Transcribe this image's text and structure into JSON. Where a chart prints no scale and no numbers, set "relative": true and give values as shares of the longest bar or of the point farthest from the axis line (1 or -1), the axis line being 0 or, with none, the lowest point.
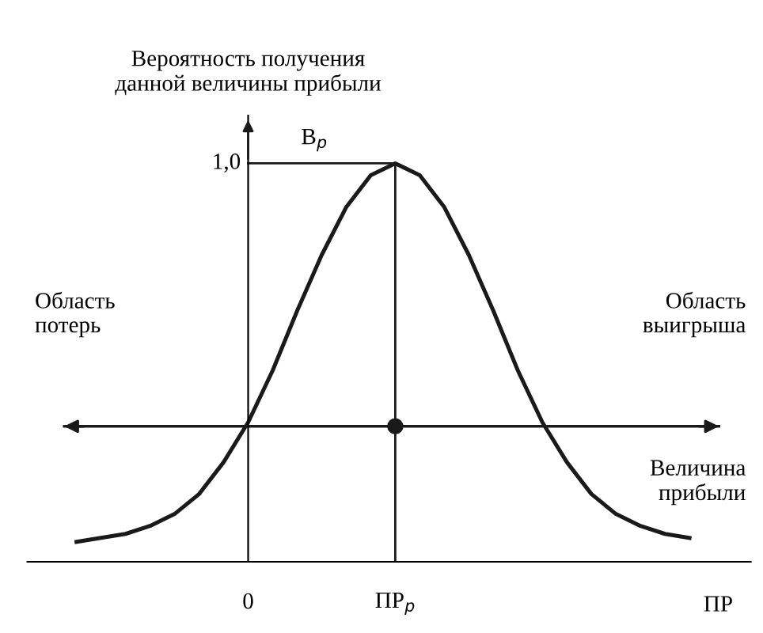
{
  "chart_data": {
    "type": "line",
    "relative": true,
    "ylabel": "Вероятность получения\nданной величины прибыли",
    "xlabel": "ПР",
    "categories": [
      null,
      null,
      null,
      null,
      null,
      null,
      null,
      "0",
      null,
      null,
      null,
      null,
      null,
      "ПР$_{р}$",
      null,
      null,
      null,
      null,
      null,
      null,
      null,
      null,
      null,
      null,
      null,
      null
    ],
    "series": [
      {
        "color": "#1a1a1a",
        "values": [
          0.05,
          0.06,
          0.07,
          0.09,
          0.12,
          0.17,
          0.25,
          0.35,
          0.48,
          0.63,
          0.77,
          0.89,
          0.97,
          1.0,
          0.97,
          0.89,
          0.77,
          0.63,
          0.48,
          0.35,
          0.25,
          0.17,
          0.12,
          0.09,
          0.07,
          0.06
        ]
      },
      {
        "type": "scatter",
        "marker": "circle",
        "color": "#1a1a1a",
        "x": [
          "ПР$_{р}$"
        ],
        "values": [
          0.34
        ]
      }
    ],
    "ref_lines": [
      {
        "axis": "y",
        "value": 1.0,
        "label": "1,0"
      },
      {
        "axis": "x",
        "value": "ПР$_{р}$"
      },
      {
        "axis": "y",
        "value": 0.34
      }
    ],
    "annotations": [
      "В$_{р}$",
      "Область\nпотерь",
      "Область\nвыигрыша",
      "Величина\nприбыли"
    ],
    "grid": false,
    "legend": false,
    "marker": "none",
    "line_style": "solid"
  }
}
